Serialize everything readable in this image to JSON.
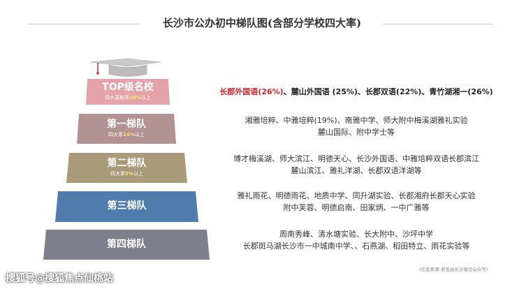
{
  "title": "长沙市公办初中梯队图(含部分学校四大率)",
  "tiers": [
    {
      "name": "TOP级名校",
      "rate_prefix": "四大录取率",
      "rate_value": "20%",
      "rate_suffix": "以上",
      "color": "#e3a3a8",
      "schools": []
    },
    {
      "name": "第一梯队",
      "rate_prefix": "四大率",
      "rate_value": "10%",
      "rate_suffix": "以上",
      "color": "#b29292",
      "schools": [
        "湘雅培粹、中雅培粹(19%)、南雅中学、师大附中梅溪湖雅礼实验",
        "麓山国际、附中学士等"
      ]
    },
    {
      "name": "第二梯队",
      "rate_prefix": "四大率",
      "rate_value": "5%",
      "rate_suffix": "以上",
      "color": "#a99a7a",
      "schools": [
        "博才梅溪湖、师大滨江、明德天心、长沙外国语、中雅培粹双语长郡滨江",
        "麓山滨江、雅礼洋湖、长郡双语洋湖等"
      ]
    },
    {
      "name": "第三梯队",
      "rate_prefix": "",
      "rate_value": "",
      "rate_suffix": "",
      "color": "#4e7cad",
      "schools": [
        "雅礼雨花、明德雨花、地质中学、同升湖实验、长郡湘府长郡天心实验",
        "附中芙蓉、明德启南、田家炳、一中广雅等"
      ]
    },
    {
      "name": "第四梯队",
      "rate_prefix": "",
      "rate_value": "",
      "rate_suffix": "",
      "color": "#7d7f8c",
      "schools": [
        "周南秀峰、清水塘实验、长大附中、沙坪中学",
        "长郡斑马湖长沙市一中城南中学、、石燕湖、稻田特立、雨花实验等"
      ]
    }
  ],
  "top_schools": {
    "red_part": "长郡外国语(26%)",
    "rest": "、麓山外国语 (25%)、长郡双语(22%)、青竹湖湘一(26%)"
  },
  "source": "(信息来源:老龙说长沙微信公众号)",
  "watermark": "搜狐号@搜狐焦点仙桃站",
  "colors": {
    "cap": "#c9c9c9",
    "tassel": "#d9262c"
  }
}
